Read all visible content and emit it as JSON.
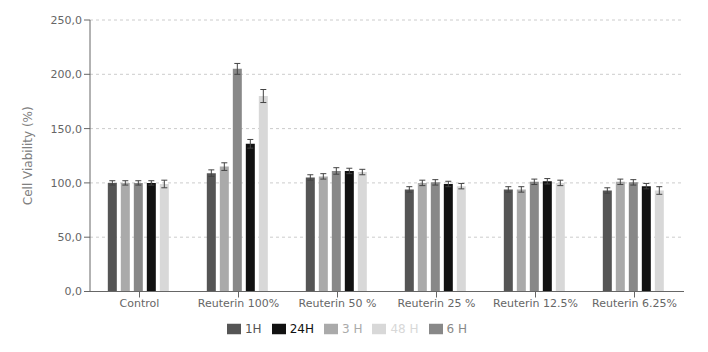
{
  "chart_data": {
    "type": "bar",
    "categories": [
      "Control",
      "Reuterin 100%",
      "Reuterin 50 %",
      "Reuterin 25 %",
      "Reuterin 12.5%",
      "Reuterin 6.25%"
    ],
    "series": [
      {
        "name": "1H",
        "color": "#555555",
        "values": [
          100.0,
          109.0,
          105.0,
          94.0,
          94.0,
          93.0
        ],
        "errors": [
          2.0,
          3.0,
          2.5,
          2.5,
          2.5,
          2.5
        ]
      },
      {
        "name": "3 H",
        "color": "#aaaaaa",
        "values": [
          100.0,
          115.0,
          106.0,
          100.0,
          94.0,
          101.0
        ],
        "errors": [
          2.0,
          3.5,
          2.5,
          2.5,
          2.5,
          2.5
        ]
      },
      {
        "name": "6 H",
        "color": "#888888",
        "values": [
          100.0,
          205.0,
          111.0,
          100.5,
          101.0,
          100.5
        ],
        "errors": [
          2.0,
          5.0,
          3.0,
          2.5,
          2.5,
          2.5
        ]
      },
      {
        "name": "24H",
        "color": "#111111",
        "values": [
          100.0,
          136.0,
          111.0,
          99.0,
          101.5,
          97.0
        ],
        "errors": [
          2.0,
          4.0,
          2.5,
          2.5,
          2.5,
          2.5
        ]
      },
      {
        "name": "48 H",
        "color": "#d8d8d8",
        "values": [
          99.0,
          180.0,
          110.0,
          97.0,
          100.0,
          93.0
        ],
        "errors": [
          3.5,
          6.0,
          2.5,
          2.5,
          2.5,
          3.5
        ]
      }
    ],
    "ylabel": "Cell Viability (%)",
    "ylim": [
      0,
      250
    ],
    "yticks": [
      {
        "value": 0,
        "label": "0,0"
      },
      {
        "value": 50,
        "label": "50,0"
      },
      {
        "value": 100,
        "label": "100,0"
      },
      {
        "value": 150,
        "label": "150,0"
      },
      {
        "value": 200,
        "label": "200,0"
      },
      {
        "value": 250,
        "label": "250,0"
      }
    ],
    "grid": true,
    "legend": "bottom"
  }
}
